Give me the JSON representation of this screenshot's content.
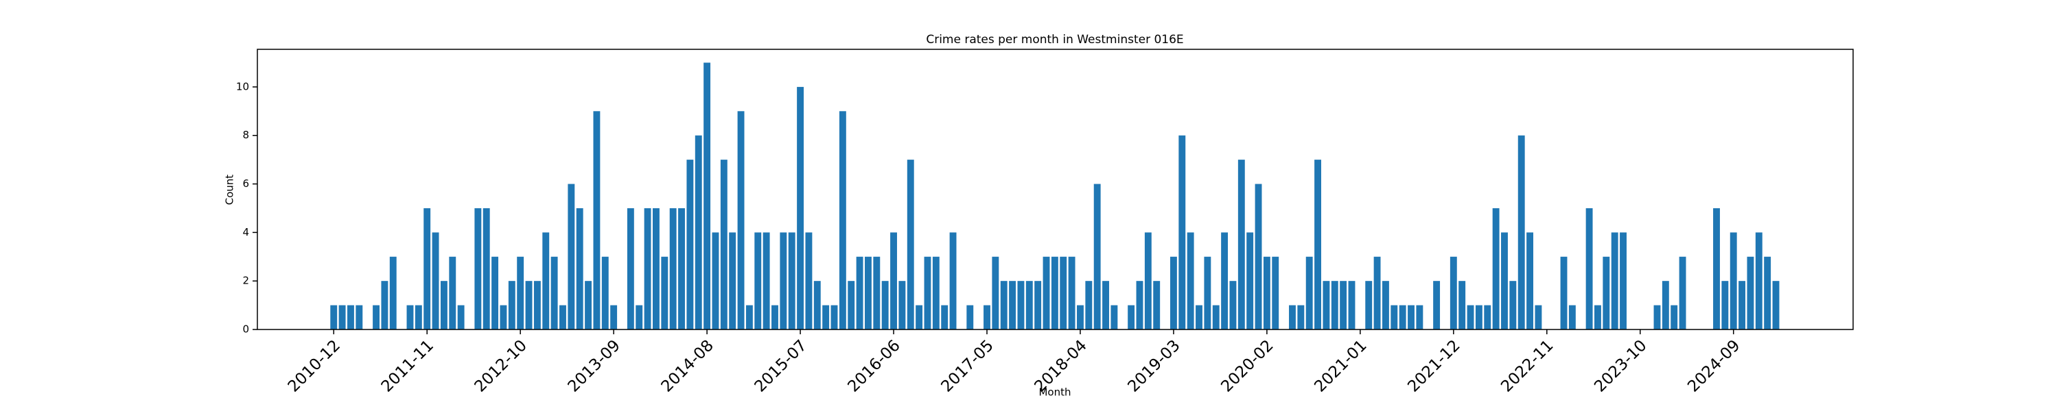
{
  "chart_data": {
    "type": "bar",
    "title": "Crime rates per month in Westminster 016E",
    "x_label": "Month",
    "y_label": "Count",
    "color": "#1f77b4",
    "categories": [
      "2010-12",
      null,
      null,
      null,
      null,
      null,
      null,
      null,
      null,
      null,
      null,
      "2011-11",
      null,
      null,
      null,
      null,
      null,
      null,
      null,
      null,
      null,
      null,
      "2012-10",
      null,
      null,
      null,
      null,
      null,
      null,
      null,
      null,
      null,
      null,
      "2013-09",
      null,
      null,
      null,
      null,
      null,
      null,
      null,
      null,
      null,
      null,
      "2014-08",
      null,
      null,
      null,
      null,
      null,
      null,
      null,
      null,
      null,
      null,
      "2015-07",
      null,
      null,
      null,
      null,
      null,
      null,
      null,
      null,
      null,
      null,
      "2016-06",
      null,
      null,
      null,
      null,
      null,
      null,
      null,
      null,
      null,
      null,
      "2017-05",
      null,
      null,
      null,
      null,
      null,
      null,
      null,
      null,
      null,
      null,
      "2018-04",
      null,
      null,
      null,
      null,
      null,
      null,
      null,
      null,
      null,
      null,
      "2019-03",
      null,
      null,
      null,
      null,
      null,
      null,
      null,
      null,
      null,
      null,
      "2020-02",
      null,
      null,
      null,
      null,
      null,
      null,
      null,
      null,
      null,
      null,
      "2021-01",
      null,
      null,
      null,
      null,
      null,
      null,
      null,
      null,
      null,
      null,
      "2021-12",
      null,
      null,
      null,
      null,
      null,
      null,
      null,
      null,
      null,
      null,
      "2022-11",
      null,
      null,
      null,
      null,
      null,
      null,
      null,
      null,
      null,
      null,
      "2023-10",
      null,
      null,
      null,
      null,
      null,
      null,
      null,
      null,
      null,
      null,
      "2024-09",
      null,
      null,
      null,
      null,
      null
    ],
    "values": [
      1,
      1,
      1,
      1,
      0,
      1,
      2,
      3,
      0,
      1,
      1,
      5,
      4,
      2,
      3,
      1,
      0,
      5,
      5,
      3,
      1,
      2,
      3,
      2,
      2,
      4,
      3,
      1,
      6,
      5,
      2,
      9,
      3,
      1,
      0,
      5,
      1,
      5,
      5,
      3,
      5,
      5,
      7,
      8,
      11,
      4,
      7,
      4,
      9,
      1,
      4,
      4,
      1,
      4,
      4,
      10,
      4,
      2,
      1,
      1,
      9,
      2,
      3,
      3,
      3,
      2,
      4,
      2,
      7,
      1,
      3,
      3,
      1,
      4,
      0,
      1,
      0,
      1,
      3,
      2,
      2,
      2,
      2,
      2,
      3,
      3,
      3,
      3,
      1,
      2,
      6,
      2,
      1,
      0,
      1,
      2,
      4,
      2,
      0,
      3,
      8,
      4,
      1,
      3,
      1,
      4,
      2,
      7,
      4,
      6,
      3,
      3,
      0,
      1,
      1,
      3,
      7,
      2,
      2,
      2,
      2,
      0,
      2,
      3,
      2,
      1,
      1,
      1,
      1,
      0,
      2,
      0,
      3,
      2,
      1,
      1,
      1,
      5,
      4,
      2,
      8,
      4,
      1,
      0,
      0,
      3,
      1,
      0,
      5,
      1,
      3,
      4,
      4,
      0,
      0,
      0,
      1,
      2,
      1,
      3,
      0,
      0,
      0,
      5,
      2,
      4,
      2,
      3,
      4,
      3,
      2
    ],
    "ylim": [
      0,
      11.55
    ],
    "yticks": [
      0,
      2,
      4,
      6,
      8,
      10
    ]
  }
}
